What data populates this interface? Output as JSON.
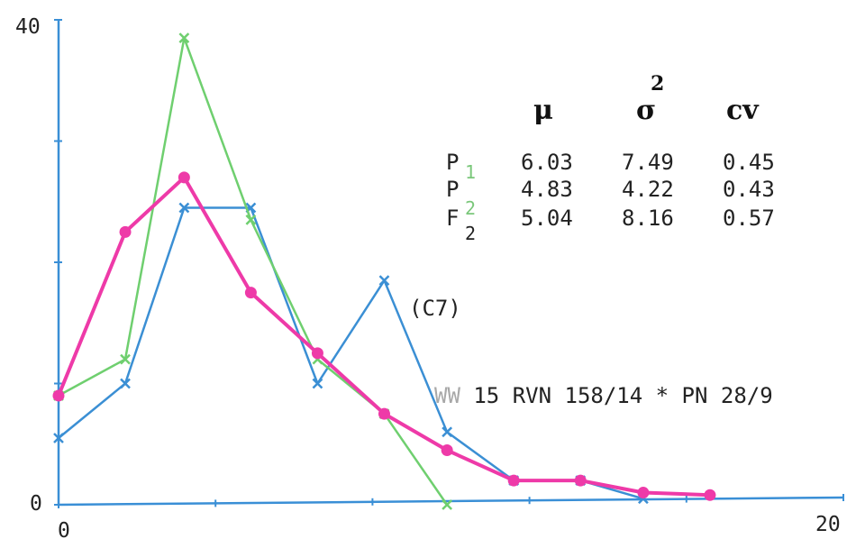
{
  "chart_data": {
    "type": "line",
    "x_axis_labels": {
      "min": "0",
      "max": "20"
    },
    "y_axis_labels": {
      "min": "0",
      "max": "40"
    },
    "xlim": [
      0,
      20
    ],
    "ylim": [
      0,
      40
    ],
    "y_ticks": [
      0,
      10,
      20,
      30,
      40
    ],
    "x_ticks": [
      0,
      4,
      8,
      12,
      16,
      20
    ],
    "series": [
      {
        "color": "#3b8fd4",
        "marker": "x",
        "x": [
          0,
          1.7,
          3.2,
          4.9,
          6.6,
          8.3,
          9.9,
          11.6,
          13.3,
          14.9
        ],
        "y": [
          5.5,
          10,
          24.5,
          24.5,
          10,
          18.5,
          6,
          2,
          2,
          0.5
        ]
      },
      {
        "color": "#6fcf6f",
        "marker": "x",
        "x": [
          0,
          1.7,
          3.2,
          4.9,
          6.6,
          8.3,
          9.9
        ],
        "y": [
          9,
          12,
          38.5,
          23.5,
          12,
          7.5,
          0
        ]
      },
      {
        "color": "#ee3aa8",
        "marker": "dot",
        "x": [
          0,
          1.7,
          3.2,
          4.9,
          6.6,
          8.3,
          9.9,
          11.6,
          13.3,
          14.9,
          16.6
        ],
        "y": [
          9,
          22.5,
          27,
          17.5,
          12.5,
          7.5,
          4.5,
          2,
          2,
          1,
          0.8
        ]
      }
    ],
    "stats_table": {
      "headers": [
        "μ",
        "σ",
        "cv"
      ],
      "header_superscript": "2",
      "rows": [
        {
          "label": "P",
          "sub": "1",
          "sub_color": "#7ac77a",
          "mu": "6.03",
          "var": "7.49",
          "cv": "0.45"
        },
        {
          "label": "P",
          "sub": "2",
          "sub_color": "#7ac77a",
          "mu": "4.83",
          "var": "4.22",
          "cv": "0.43"
        },
        {
          "label": "F",
          "sub": "2",
          "sub_color": "#222222",
          "mu": "5.04",
          "var": "8.16",
          "cv": "0.57"
        }
      ]
    },
    "annotations": {
      "c7": "(C7)",
      "cross_prefix": "WW",
      "cross_rest": " 15 RVN 158/14 * PN 28/9"
    }
  }
}
